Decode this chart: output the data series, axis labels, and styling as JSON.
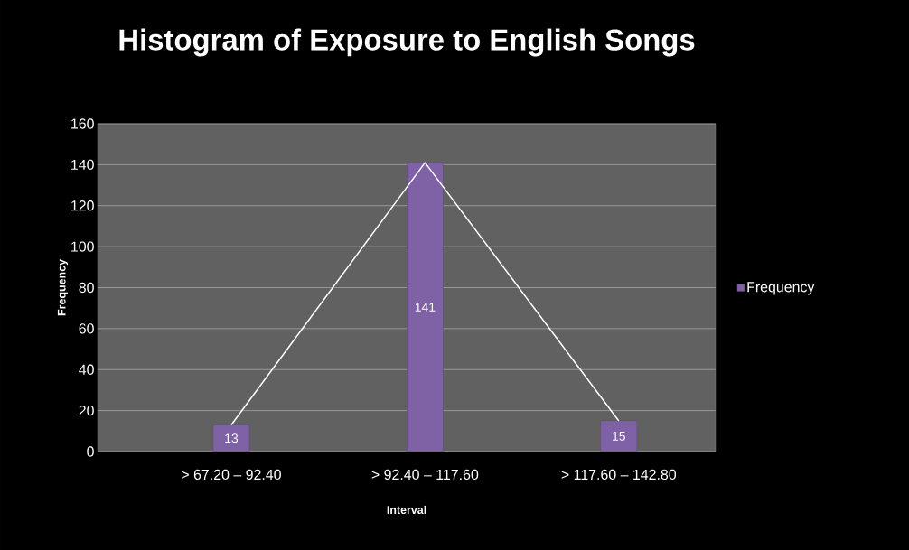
{
  "chart_data": {
    "type": "bar",
    "title": "Histogram of Exposure to English Songs",
    "xlabel": "Interval",
    "ylabel": "Frequency",
    "categories": [
      "> 67.20 – 92.40",
      "> 92.40 – 117.60",
      "> 117.60 – 142.80"
    ],
    "series": [
      {
        "name": "Frequency",
        "color": "#7f62a6",
        "values": [
          13,
          141,
          15
        ],
        "value_labels": [
          "13",
          "141",
          "15"
        ]
      },
      {
        "type": "line",
        "color": "#ffffff",
        "values": [
          13,
          141,
          15
        ]
      }
    ],
    "ylim": [
      0,
      160
    ],
    "yticks": [
      0,
      20,
      40,
      60,
      80,
      100,
      120,
      140,
      160
    ],
    "grid": "y",
    "legend": "right"
  }
}
